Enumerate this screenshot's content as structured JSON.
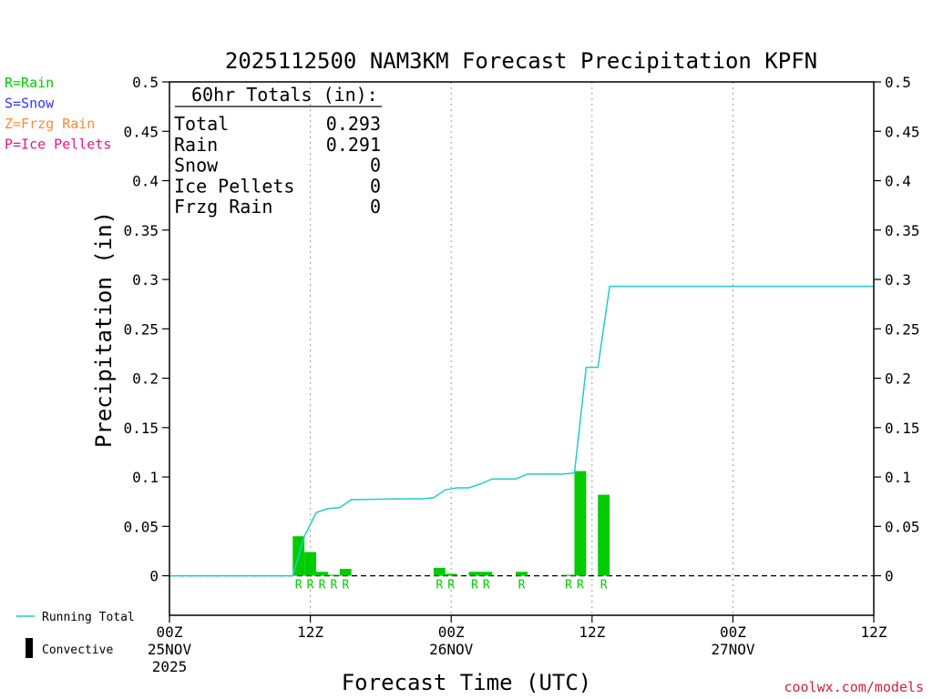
{
  "chart_data": {
    "type": "bar",
    "title": "2025112500 NAM3KM Forecast Precipitation KPFN",
    "xlabel": "Forecast Time (UTC)",
    "ylabel": "Precipitation (in)",
    "ylim": [
      -0.04,
      0.5
    ],
    "yticks": [
      0,
      0.05,
      0.1,
      0.15,
      0.2,
      0.25,
      0.3,
      0.35,
      0.4,
      0.45,
      0.5
    ],
    "ytick_labels": [
      "0",
      "0.05",
      "0.1",
      "0.15",
      "0.2",
      "0.25",
      "0.3",
      "0.35",
      "0.4",
      "0.45",
      "0.5"
    ],
    "xlim_hours": [
      0,
      60
    ],
    "xticks": [
      {
        "hour": 0,
        "lines": [
          "00Z",
          "25NOV",
          "2025"
        ]
      },
      {
        "hour": 12,
        "lines": [
          "12Z"
        ]
      },
      {
        "hour": 24,
        "lines": [
          "00Z",
          "26NOV"
        ]
      },
      {
        "hour": 36,
        "lines": [
          "12Z"
        ]
      },
      {
        "hour": 48,
        "lines": [
          "00Z",
          "27NOV"
        ]
      },
      {
        "hour": 60,
        "lines": [
          "12Z"
        ]
      }
    ],
    "gridlines_hours": [
      12,
      24,
      36,
      48
    ],
    "grid": "dotted vertical",
    "bars": [
      {
        "hour": 11,
        "value": 0.04,
        "type": "R"
      },
      {
        "hour": 12,
        "value": 0.024,
        "type": "R"
      },
      {
        "hour": 13,
        "value": 0.004,
        "type": "R"
      },
      {
        "hour": 14,
        "value": 0.001,
        "type": "R"
      },
      {
        "hour": 15,
        "value": 0.007,
        "type": "R"
      },
      {
        "hour": 23,
        "value": 0.008,
        "type": "R"
      },
      {
        "hour": 24,
        "value": 0.002,
        "type": "R"
      },
      {
        "hour": 26,
        "value": 0.004,
        "type": "R"
      },
      {
        "hour": 27,
        "value": 0.004,
        "type": "R"
      },
      {
        "hour": 30,
        "value": 0.004,
        "type": "R"
      },
      {
        "hour": 34,
        "value": 0.001,
        "type": "R"
      },
      {
        "hour": 35,
        "value": 0.106,
        "type": "R"
      },
      {
        "hour": 37,
        "value": 0.082,
        "type": "R"
      }
    ],
    "running_total": {
      "name": "Running Total",
      "hours": [
        0,
        9.5,
        10.5,
        11.5,
        12.5,
        13.5,
        14.5,
        15.5,
        20,
        21.5,
        22.5,
        23.5,
        24.5,
        25.5,
        26.5,
        27.5,
        28.5,
        29.5,
        30.5,
        32,
        33.5,
        34.5,
        35.5,
        36.5,
        37.5,
        60
      ],
      "values": [
        0,
        0,
        0,
        0.04,
        0.064,
        0.068,
        0.069,
        0.077,
        0.078,
        0.078,
        0.079,
        0.087,
        0.089,
        0.089,
        0.093,
        0.098,
        0.098,
        0.098,
        0.103,
        0.103,
        0.103,
        0.104,
        0.211,
        0.211,
        0.293,
        0.293
      ]
    },
    "colors": {
      "rain": "#00cc00",
      "snow": "#3333ff",
      "frzg_rain": "#ff8833",
      "ice_pellets": "#ee1188",
      "running_total": "#22cccc",
      "axes": "#000000"
    }
  },
  "legend_left": [
    {
      "text": "R=Rain",
      "color": "#00cc00"
    },
    {
      "text": "S=Snow",
      "color": "#3333ff"
    },
    {
      "text": "Z=Frzg Rain",
      "color": "#ff8833"
    },
    {
      "text": "P=Ice Pellets",
      "color": "#ee1188"
    }
  ],
  "totals_box": {
    "header": "60hr Totals (in):",
    "rows": [
      {
        "label": "Total",
        "value": "0.293"
      },
      {
        "label": "Rain",
        "value": "0.291"
      },
      {
        "label": "Snow",
        "value": "0"
      },
      {
        "label": "Ice Pellets",
        "value": "0"
      },
      {
        "label": "Frzg Rain",
        "value": "0"
      }
    ]
  },
  "bottom_legend": {
    "running_total_label": "Running Total",
    "convective_label": "Convective"
  },
  "credit": "coolwx.com/models"
}
